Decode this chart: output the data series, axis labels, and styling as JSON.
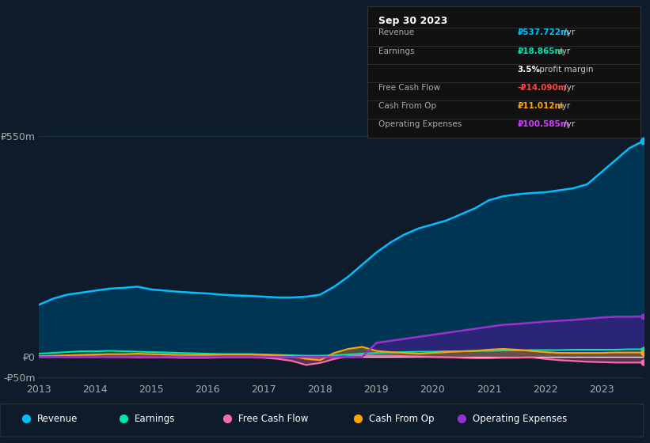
{
  "bg_color": "#0d1b2a",
  "plot_bg_color": "#0d1b2a",
  "grid_color": "#1e3a4a",
  "years": [
    2013,
    2013.25,
    2013.5,
    2013.75,
    2014,
    2014.25,
    2014.5,
    2014.75,
    2015,
    2015.25,
    2015.5,
    2015.75,
    2016,
    2016.25,
    2016.5,
    2016.75,
    2017,
    2017.25,
    2017.5,
    2017.75,
    2018,
    2018.25,
    2018.5,
    2018.75,
    2019,
    2019.25,
    2019.5,
    2019.75,
    2020,
    2020.25,
    2020.5,
    2020.75,
    2021,
    2021.25,
    2021.5,
    2021.75,
    2022,
    2022.25,
    2022.5,
    2022.75,
    2023,
    2023.25,
    2023.5,
    2023.75
  ],
  "revenue": [
    130,
    145,
    155,
    160,
    165,
    170,
    172,
    175,
    168,
    165,
    162,
    160,
    158,
    155,
    153,
    152,
    150,
    148,
    148,
    150,
    155,
    175,
    200,
    230,
    260,
    285,
    305,
    320,
    330,
    340,
    355,
    370,
    390,
    400,
    405,
    408,
    410,
    415,
    420,
    430,
    460,
    490,
    520,
    538
  ],
  "earnings": [
    8,
    10,
    12,
    14,
    14,
    15,
    14,
    13,
    12,
    11,
    10,
    9,
    8,
    7,
    7,
    7,
    6,
    5,
    4,
    3,
    3,
    4,
    6,
    8,
    10,
    11,
    12,
    13,
    13,
    14,
    14,
    15,
    15,
    16,
    16,
    17,
    17,
    17,
    18,
    18,
    18,
    18,
    19,
    19
  ],
  "free_cash_flow": [
    2,
    2,
    1,
    1,
    1,
    0,
    0,
    -1,
    -1,
    -1,
    -2,
    -2,
    -2,
    -1,
    -1,
    -1,
    -2,
    -5,
    -10,
    -20,
    -15,
    -5,
    2,
    4,
    3,
    3,
    2,
    1,
    0,
    -1,
    -2,
    -3,
    -3,
    -2,
    -2,
    -1,
    -5,
    -8,
    -10,
    -12,
    -13,
    -14,
    -14,
    -14
  ],
  "cash_from_op": [
    2,
    3,
    4,
    5,
    6,
    7,
    7,
    8,
    7,
    6,
    5,
    5,
    5,
    6,
    6,
    6,
    5,
    4,
    2,
    -5,
    -8,
    10,
    20,
    25,
    15,
    12,
    10,
    8,
    10,
    12,
    14,
    15,
    18,
    20,
    18,
    15,
    12,
    10,
    10,
    10,
    10,
    11,
    11,
    11
  ],
  "operating_expenses": [
    0,
    0,
    0,
    0,
    0,
    0,
    0,
    0,
    0,
    0,
    0,
    0,
    0,
    0,
    0,
    0,
    0,
    0,
    0,
    0,
    0,
    0,
    0,
    0,
    35,
    40,
    45,
    50,
    55,
    60,
    65,
    70,
    75,
    80,
    82,
    85,
    88,
    90,
    92,
    95,
    98,
    100,
    100,
    101
  ],
  "revenue_color": "#00bfff",
  "earnings_color": "#00e5b0",
  "free_cash_flow_color": "#ff69b4",
  "cash_from_op_color": "#ffa500",
  "operating_expenses_color": "#9932cc",
  "ylim": [
    -60,
    580
  ],
  "yticks": [
    -50,
    0,
    550
  ],
  "ytick_labels": [
    "-₽50m",
    "₽0",
    "₽550m"
  ],
  "xtick_years": [
    2013,
    2014,
    2015,
    2016,
    2017,
    2018,
    2019,
    2020,
    2021,
    2022,
    2023
  ],
  "tooltip": {
    "date": "Sep 30 2023",
    "rows": [
      {
        "label": "Revenue",
        "value": "₽537.722m",
        "suffix": " /yr",
        "value_color": "#00bfff"
      },
      {
        "label": "Earnings",
        "value": "₽18.865m",
        "suffix": " /yr",
        "value_color": "#00e5b0"
      },
      {
        "label": "",
        "value": "3.5%",
        "suffix": " profit margin",
        "value_color": "#ffffff"
      },
      {
        "label": "Free Cash Flow",
        "value": "-₽14.090m",
        "suffix": " /yr",
        "value_color": "#ff4444"
      },
      {
        "label": "Cash From Op",
        "value": "₽11.012m",
        "suffix": " /yr",
        "value_color": "#ffa500"
      },
      {
        "label": "Operating Expenses",
        "value": "₽100.585m",
        "suffix": " /yr",
        "value_color": "#cc44ff"
      }
    ]
  },
  "legend_items": [
    {
      "label": "Revenue",
      "color": "#00bfff"
    },
    {
      "label": "Earnings",
      "color": "#00e5b0"
    },
    {
      "label": "Free Cash Flow",
      "color": "#ff69b4"
    },
    {
      "label": "Cash From Op",
      "color": "#ffa500"
    },
    {
      "label": "Operating Expenses",
      "color": "#9932cc"
    }
  ]
}
